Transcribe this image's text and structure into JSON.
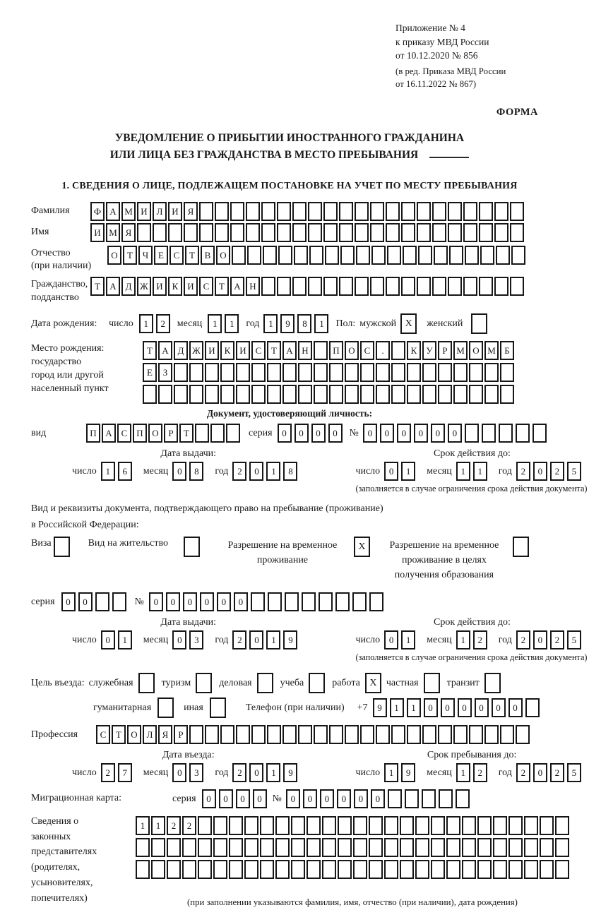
{
  "header": {
    "ref_line1": "Приложение № 4",
    "ref_line2": "к приказу МВД России",
    "ref_line3": "от 10.12.2020 № 856",
    "ed_line1": "(в ред. Приказа МВД России",
    "ed_line2": "от 16.11.2022 № 867)",
    "forma": "ФОРМА"
  },
  "title": {
    "line1": "УВЕДОМЛЕНИЕ О ПРИБЫТИИ ИНОСТРАННОГО ГРАЖДАНИНА",
    "line2": "ИЛИ ЛИЦА БЕЗ ГРАЖДАНСТВА В МЕСТО ПРЕБЫВАНИЯ"
  },
  "section1_heading": "1. СВЕДЕНИЯ О ЛИЦЕ, ПОДЛЕЖАЩЕМ ПОСТАНОВКЕ НА УЧЕТ ПО МЕСТУ ПРЕБЫВАНИЯ",
  "labels": {
    "day": "число",
    "month": "месяц",
    "year": "год",
    "seriya": "серия",
    "number": "№"
  },
  "surname": {
    "label": "Фамилия",
    "value": "ФАМИЛИЯ",
    "cells": 28
  },
  "firstname": {
    "label": "Имя",
    "value": "ИМЯ",
    "cells": 28
  },
  "patronymic": {
    "label1": "Отчество",
    "label2": "(при наличии)",
    "value": "ОТЧЕСТВО",
    "cells": 27
  },
  "citizenship": {
    "label1": "Гражданство,",
    "label2": "подданство",
    "value": "ТАДЖИКИСТАН",
    "cells": 28
  },
  "birth": {
    "label": "Дата рождения:",
    "day": "12",
    "month": "11",
    "year": "1981",
    "gender_label": "Пол:",
    "male_label": "мужской",
    "male": "X",
    "female_label": "женский",
    "female": ""
  },
  "birthplace": {
    "label1": "Место рождения:",
    "label2": "государство",
    "label3": "город или другой",
    "label4": "населенный пункт",
    "row1": {
      "value": "ТАДЖИКИСТАН ПОС. КУРМОМБ",
      "cells": 24
    },
    "row2": {
      "value": "ЕЗ",
      "cells": 24
    },
    "row3": {
      "value": "",
      "cells": 24
    }
  },
  "identity_doc": {
    "heading": "Документ, удостоверяющий личность:",
    "vid_label": "вид",
    "vid": {
      "value": "ПАСПОРТ",
      "cells": 10
    },
    "seriya": {
      "value": "0000",
      "cells": 4
    },
    "number": {
      "value": "000000",
      "cells": 11
    },
    "issue": {
      "heading": "Дата выдачи:",
      "day": "16",
      "month": "08",
      "year": "2018"
    },
    "expiry": {
      "heading": "Срок действия до:",
      "day": "01",
      "month": "11",
      "year": "2025"
    },
    "expiry_note": "(заполняется в случае ограничения срока действия документа)"
  },
  "residence_doc": {
    "intro1": "Вид и реквизиты документа, подтверждающего право на пребывание (проживание)",
    "intro2": "в Российской Федерации:",
    "visa_label": "Виза",
    "visa": "",
    "vnj_label": "Вид на жительство",
    "vnj": "",
    "rvp_label1": "Разрешение на временное",
    "rvp_label2": "проживание",
    "rvp": "X",
    "rvpo_label1": "Разрешение на временное",
    "rvpo_label2": "проживание в целях",
    "rvpo_label3": "получения образования",
    "rvpo": "",
    "seriya": {
      "value": "00",
      "cells": 4
    },
    "number": {
      "value": "000000",
      "cells": 14
    },
    "issue": {
      "heading": "Дата выдачи:",
      "day": "01",
      "month": "03",
      "year": "2019"
    },
    "expiry": {
      "heading": "Срок действия до:",
      "day": "01",
      "month": "12",
      "year": "2025"
    },
    "expiry_note": "(заполняется в случае ограничения срока действия документа)"
  },
  "purpose": {
    "label": "Цель въезда:",
    "options": [
      {
        "label": "служебная",
        "value": ""
      },
      {
        "label": "туризм",
        "value": ""
      },
      {
        "label": "деловая",
        "value": ""
      },
      {
        "label": "учеба",
        "value": ""
      },
      {
        "label": "работа",
        "value": "X"
      },
      {
        "label": "частная",
        "value": ""
      },
      {
        "label": "транзит",
        "value": ""
      },
      {
        "label": "гуманитарная",
        "value": ""
      },
      {
        "label": "иная",
        "value": ""
      }
    ],
    "phone_label": "Телефон (при наличии)",
    "phone_prefix": "+7",
    "phone": {
      "value": "911000000",
      "cells": 10
    }
  },
  "profession": {
    "label": "Профессия",
    "value": "СТОЛЯР",
    "cells": 28
  },
  "entry": {
    "date": {
      "heading": "Дата въезда:",
      "day": "27",
      "month": "03",
      "year": "2019"
    },
    "stay": {
      "heading": "Срок пребывания до:",
      "day": "19",
      "month": "12",
      "year": "2025"
    }
  },
  "migration_card": {
    "label": "Миграционная карта:",
    "seriya": {
      "value": "0000",
      "cells": 4
    },
    "number": {
      "value": "000000",
      "cells": 11
    }
  },
  "representatives": {
    "label1": "Сведения о",
    "label2": "законных",
    "label3": "представителях",
    "label4": "(родителях,",
    "label5": "усыновителях,",
    "label6": "попечителях)",
    "row1": {
      "value": "1122",
      "cells": 28
    },
    "row2": {
      "value": "",
      "cells": 28
    },
    "row3": {
      "value": "",
      "cells": 28
    },
    "note": "(при заполнении указываются фамилия, имя, отчество (при наличии), дата рождения)"
  }
}
